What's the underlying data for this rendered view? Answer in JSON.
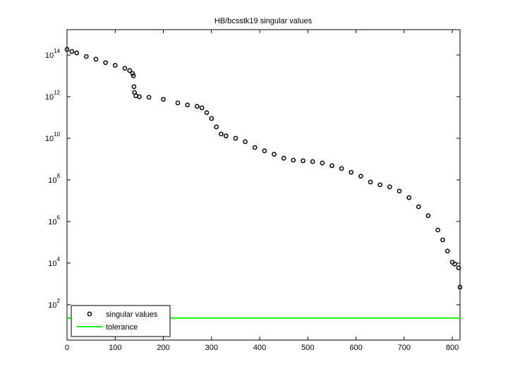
{
  "chart_data": {
    "type": "scatter",
    "title": "HB/bcsstk19 singular values",
    "log_y": true,
    "xlim": [
      0,
      816
    ],
    "xticks": [
      0,
      100,
      200,
      300,
      400,
      500,
      600,
      700,
      800
    ],
    "ylim": [
      2,
      1660000000000000.0
    ],
    "yticks": [
      {
        "value": 100,
        "label": "10",
        "exponent": "2"
      },
      {
        "value": 10000,
        "label": "10",
        "exponent": "4"
      },
      {
        "value": 1000000,
        "label": "10",
        "exponent": "6"
      },
      {
        "value": 100000000,
        "label": "10",
        "exponent": "8"
      },
      {
        "value": 10000000000,
        "label": "10",
        "exponent": "10"
      },
      {
        "value": 1000000000000,
        "label": "10",
        "exponent": "12"
      },
      {
        "value": 100000000000000,
        "label": "10",
        "exponent": "14"
      }
    ],
    "legend": "lower left",
    "series": [
      {
        "name": "singular values",
        "kind": "markers",
        "color": "#000000",
        "x": [
          0,
          10,
          20,
          40,
          60,
          80,
          100,
          120,
          130,
          136,
          138,
          139,
          140,
          143,
          150,
          170,
          200,
          230,
          250,
          270,
          280,
          290,
          300,
          310,
          320,
          330,
          350,
          370,
          390,
          410,
          430,
          450,
          470,
          490,
          510,
          530,
          550,
          570,
          590,
          610,
          630,
          650,
          670,
          690,
          710,
          730,
          750,
          770,
          780,
          790,
          800,
          805,
          813,
          816
        ],
        "values": [
          186000000000000.0,
          148000000000000.0,
          126000000000000.0,
          85000000000000.0,
          63000000000000.0,
          43000000000000.0,
          32000000000000.0,
          23000000000000.0,
          18000000000000.0,
          13000000000000.0,
          10000000000000.0,
          3000000000000.0,
          1600000000000.0,
          1100000000000.0,
          1000000000000.0,
          930000000000.0,
          740000000000.0,
          500000000000.0,
          400000000000.0,
          340000000000.0,
          290000000000.0,
          170000000000.0,
          89000000000.0,
          35000000000.0,
          16000000000.0,
          13000000000.0,
          10000000000.0,
          6800000000.0,
          3600000000.0,
          2500000000.0,
          1700000000.0,
          1100000000.0,
          890000000.0,
          830000000.0,
          760000000.0,
          650000000.0,
          480000000.0,
          350000000.0,
          230000000.0,
          150000000.0,
          79000000.0,
          58000000.0,
          46000000.0,
          29000000.0,
          14000000.0,
          5100000.0,
          1900000.0,
          390000.0,
          130000.0,
          38000.0,
          11000.0,
          9000,
          6000,
          700
        ]
      },
      {
        "name": "tolerance",
        "kind": "line",
        "color": "#00ff00",
        "x": [
          0,
          816
        ],
        "values": [
          23,
          23
        ]
      }
    ]
  }
}
